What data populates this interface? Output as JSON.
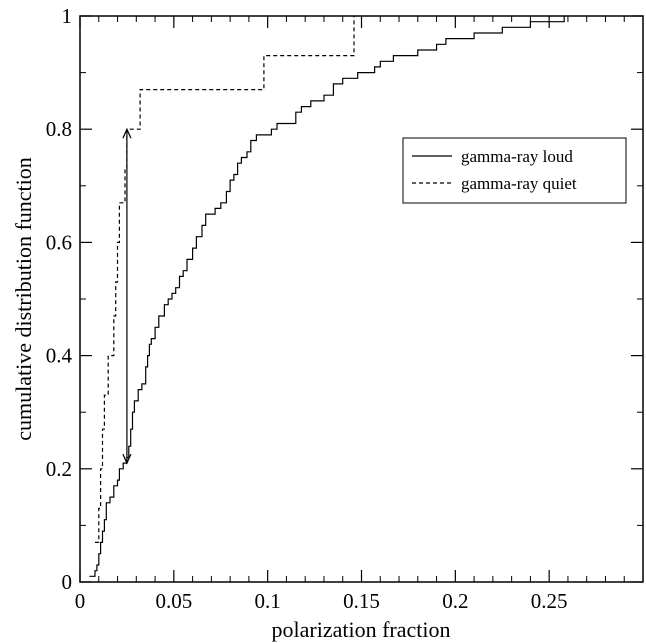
{
  "chart_data": {
    "type": "line",
    "xlabel": "polarization fraction",
    "ylabel": "cumulative distribution function",
    "xlim": [
      0,
      0.3
    ],
    "ylim": [
      0,
      1
    ],
    "grid": false,
    "legend_position": "top-right",
    "x_ticks": [
      {
        "value": 0,
        "label": "0"
      },
      {
        "value": 0.05,
        "label": "0.05"
      },
      {
        "value": 0.1,
        "label": "0.1"
      },
      {
        "value": 0.15,
        "label": "0.15"
      },
      {
        "value": 0.2,
        "label": "0.2"
      },
      {
        "value": 0.25,
        "label": "0.25"
      }
    ],
    "y_ticks": [
      {
        "value": 0,
        "label": "0"
      },
      {
        "value": 0.2,
        "label": "0.2"
      },
      {
        "value": 0.4,
        "label": "0.4"
      },
      {
        "value": 0.6,
        "label": "0.6"
      },
      {
        "value": 0.8,
        "label": "0.8"
      },
      {
        "value": 1,
        "label": "1"
      }
    ],
    "series": [
      {
        "name": "gamma-ray loud",
        "style": "solid",
        "color": "#000000",
        "points": [
          [
            0.005,
            0.01
          ],
          [
            0.008,
            0.02
          ],
          [
            0.009,
            0.03
          ],
          [
            0.01,
            0.05
          ],
          [
            0.011,
            0.07
          ],
          [
            0.012,
            0.09
          ],
          [
            0.013,
            0.11
          ],
          [
            0.014,
            0.14
          ],
          [
            0.016,
            0.15
          ],
          [
            0.018,
            0.17
          ],
          [
            0.02,
            0.18
          ],
          [
            0.021,
            0.2
          ],
          [
            0.023,
            0.21
          ],
          [
            0.025,
            0.22
          ],
          [
            0.026,
            0.24
          ],
          [
            0.027,
            0.27
          ],
          [
            0.028,
            0.3
          ],
          [
            0.029,
            0.32
          ],
          [
            0.031,
            0.34
          ],
          [
            0.033,
            0.35
          ],
          [
            0.035,
            0.38
          ],
          [
            0.036,
            0.4
          ],
          [
            0.037,
            0.42
          ],
          [
            0.038,
            0.43
          ],
          [
            0.04,
            0.45
          ],
          [
            0.042,
            0.47
          ],
          [
            0.045,
            0.49
          ],
          [
            0.047,
            0.5
          ],
          [
            0.049,
            0.51
          ],
          [
            0.051,
            0.52
          ],
          [
            0.053,
            0.54
          ],
          [
            0.055,
            0.55
          ],
          [
            0.057,
            0.57
          ],
          [
            0.06,
            0.59
          ],
          [
            0.062,
            0.61
          ],
          [
            0.065,
            0.63
          ],
          [
            0.067,
            0.65
          ],
          [
            0.072,
            0.66
          ],
          [
            0.075,
            0.67
          ],
          [
            0.078,
            0.69
          ],
          [
            0.08,
            0.71
          ],
          [
            0.082,
            0.72
          ],
          [
            0.084,
            0.74
          ],
          [
            0.086,
            0.75
          ],
          [
            0.089,
            0.76
          ],
          [
            0.091,
            0.78
          ],
          [
            0.094,
            0.79
          ],
          [
            0.102,
            0.8
          ],
          [
            0.105,
            0.81
          ],
          [
            0.115,
            0.83
          ],
          [
            0.118,
            0.84
          ],
          [
            0.123,
            0.85
          ],
          [
            0.13,
            0.86
          ],
          [
            0.135,
            0.88
          ],
          [
            0.14,
            0.89
          ],
          [
            0.148,
            0.9
          ],
          [
            0.157,
            0.91
          ],
          [
            0.16,
            0.92
          ],
          [
            0.167,
            0.93
          ],
          [
            0.18,
            0.94
          ],
          [
            0.19,
            0.95
          ],
          [
            0.195,
            0.96
          ],
          [
            0.21,
            0.97
          ],
          [
            0.225,
            0.98
          ],
          [
            0.24,
            0.99
          ],
          [
            0.258,
            1.0
          ]
        ]
      },
      {
        "name": "gamma-ray quiet",
        "style": "dashed",
        "color": "#000000",
        "points": [
          [
            0.008,
            0.07
          ],
          [
            0.01,
            0.13
          ],
          [
            0.011,
            0.2
          ],
          [
            0.012,
            0.27
          ],
          [
            0.013,
            0.33
          ],
          [
            0.015,
            0.4
          ],
          [
            0.018,
            0.47
          ],
          [
            0.019,
            0.53
          ],
          [
            0.02,
            0.6
          ],
          [
            0.021,
            0.67
          ],
          [
            0.024,
            0.73
          ],
          [
            0.025,
            0.8
          ],
          [
            0.032,
            0.87
          ],
          [
            0.098,
            0.93
          ],
          [
            0.146,
            1.0
          ]
        ]
      }
    ],
    "annotations": [
      {
        "type": "double-arrow",
        "x": 0.025,
        "y_from": 0.21,
        "y_to": 0.8
      }
    ]
  }
}
